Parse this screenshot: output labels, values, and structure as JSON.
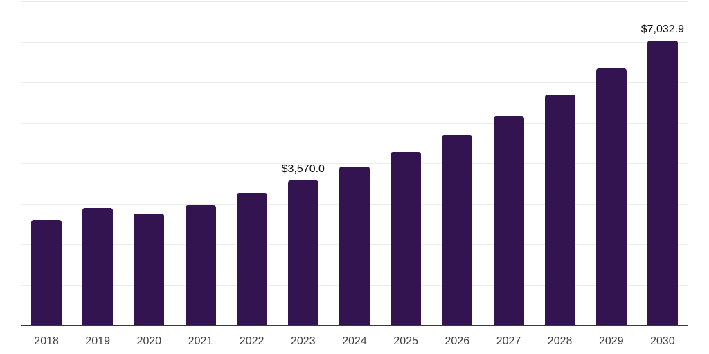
{
  "chart_data": {
    "type": "bar",
    "title": "",
    "xlabel": "",
    "ylabel": "",
    "categories": [
      "2018",
      "2019",
      "2020",
      "2021",
      "2022",
      "2023",
      "2024",
      "2025",
      "2026",
      "2027",
      "2028",
      "2029",
      "2030"
    ],
    "values": [
      2600,
      2890,
      2750,
      2960,
      3260,
      3570.0,
      3920,
      4280,
      4700,
      5170,
      5700,
      6350,
      7032.9
    ],
    "value_labels": [
      {
        "category": "2023",
        "text": "$3,570.0"
      },
      {
        "category": "2030",
        "text": "$7,032.9"
      }
    ],
    "ylim": [
      0,
      8000
    ],
    "gridline_interval": 1000,
    "grid": "horizontal",
    "y_axis_labels_visible": false,
    "legend_position": "none",
    "colors": {
      "bar": "#341351",
      "axis_line": "#3a3a3a",
      "gridline": "#ececec",
      "tick_label": "#404040",
      "data_label": "#0f0f0f",
      "background": "#ffffff"
    }
  }
}
